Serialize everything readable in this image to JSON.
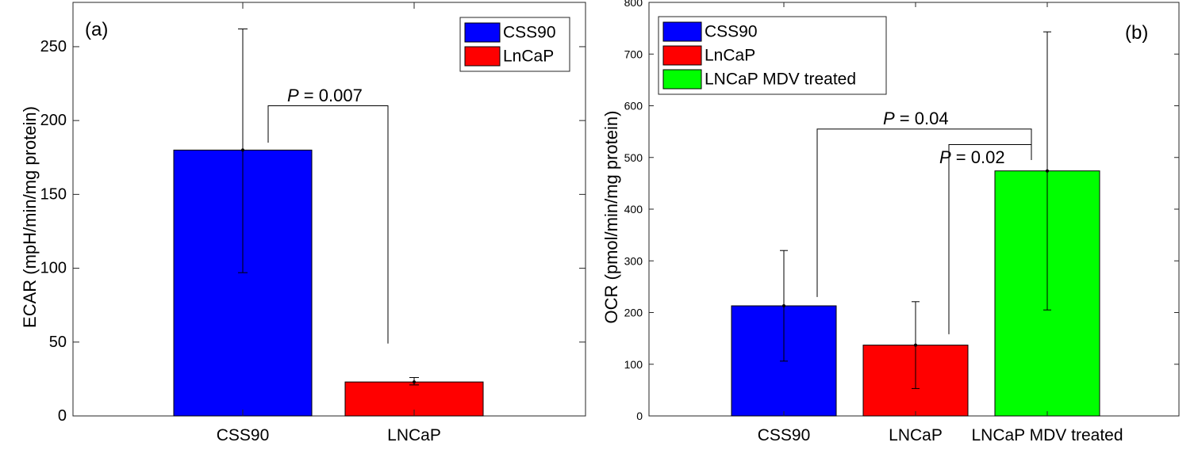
{
  "chart_data": [
    {
      "type": "bar",
      "panel_label": "(a)",
      "title": "",
      "xlabel": "",
      "ylabel": "ECAR (mpH/min/mg protein)",
      "ylim": [
        0,
        280
      ],
      "yticks": [
        0,
        50,
        100,
        150,
        200,
        250
      ],
      "categories": [
        "CSS90",
        "LNCaP"
      ],
      "values": [
        180,
        23
      ],
      "error_low": [
        97,
        21
      ],
      "error_high": [
        262,
        26
      ],
      "colors": [
        "#0000ff",
        "#ff0000"
      ],
      "legend": {
        "position": "top-right",
        "entries": [
          "CSS90",
          "LnCaP"
        ]
      },
      "annotations": [
        {
          "p_label": "P",
          "p_value": " = 0.007",
          "from": 0,
          "to": 1,
          "bracket_value": 210,
          "left_foot": 185,
          "right_foot": 49
        }
      ]
    },
    {
      "type": "bar",
      "panel_label": "(b)",
      "title": "",
      "xlabel": "",
      "ylabel": "OCR (pmol/min/mg protein)",
      "ylim": [
        0,
        800
      ],
      "yticks": [
        0,
        100,
        200,
        300,
        400,
        500,
        600,
        700,
        800
      ],
      "categories": [
        "CSS90",
        "LNCaP",
        "LNCaP MDV treated"
      ],
      "values": [
        213,
        137,
        474
      ],
      "error_low": [
        106,
        53,
        205
      ],
      "error_high": [
        320,
        221,
        743
      ],
      "colors": [
        "#0000ff",
        "#ff0000",
        "#00ff00"
      ],
      "legend": {
        "position": "top-left",
        "entries": [
          "CSS90",
          "LnCaP",
          "LNCaP MDV treated"
        ]
      },
      "annotations": [
        {
          "p_label": "P",
          "p_value": " = 0.04",
          "from": 0,
          "to": 2,
          "bracket_value": 555,
          "left_foot": 230,
          "right_foot": 498
        },
        {
          "p_label": "P",
          "p_value": " = 0.02",
          "from": 1,
          "to": 2,
          "bracket_value": 525,
          "left_foot": 158,
          "right_foot": 495
        }
      ]
    }
  ]
}
